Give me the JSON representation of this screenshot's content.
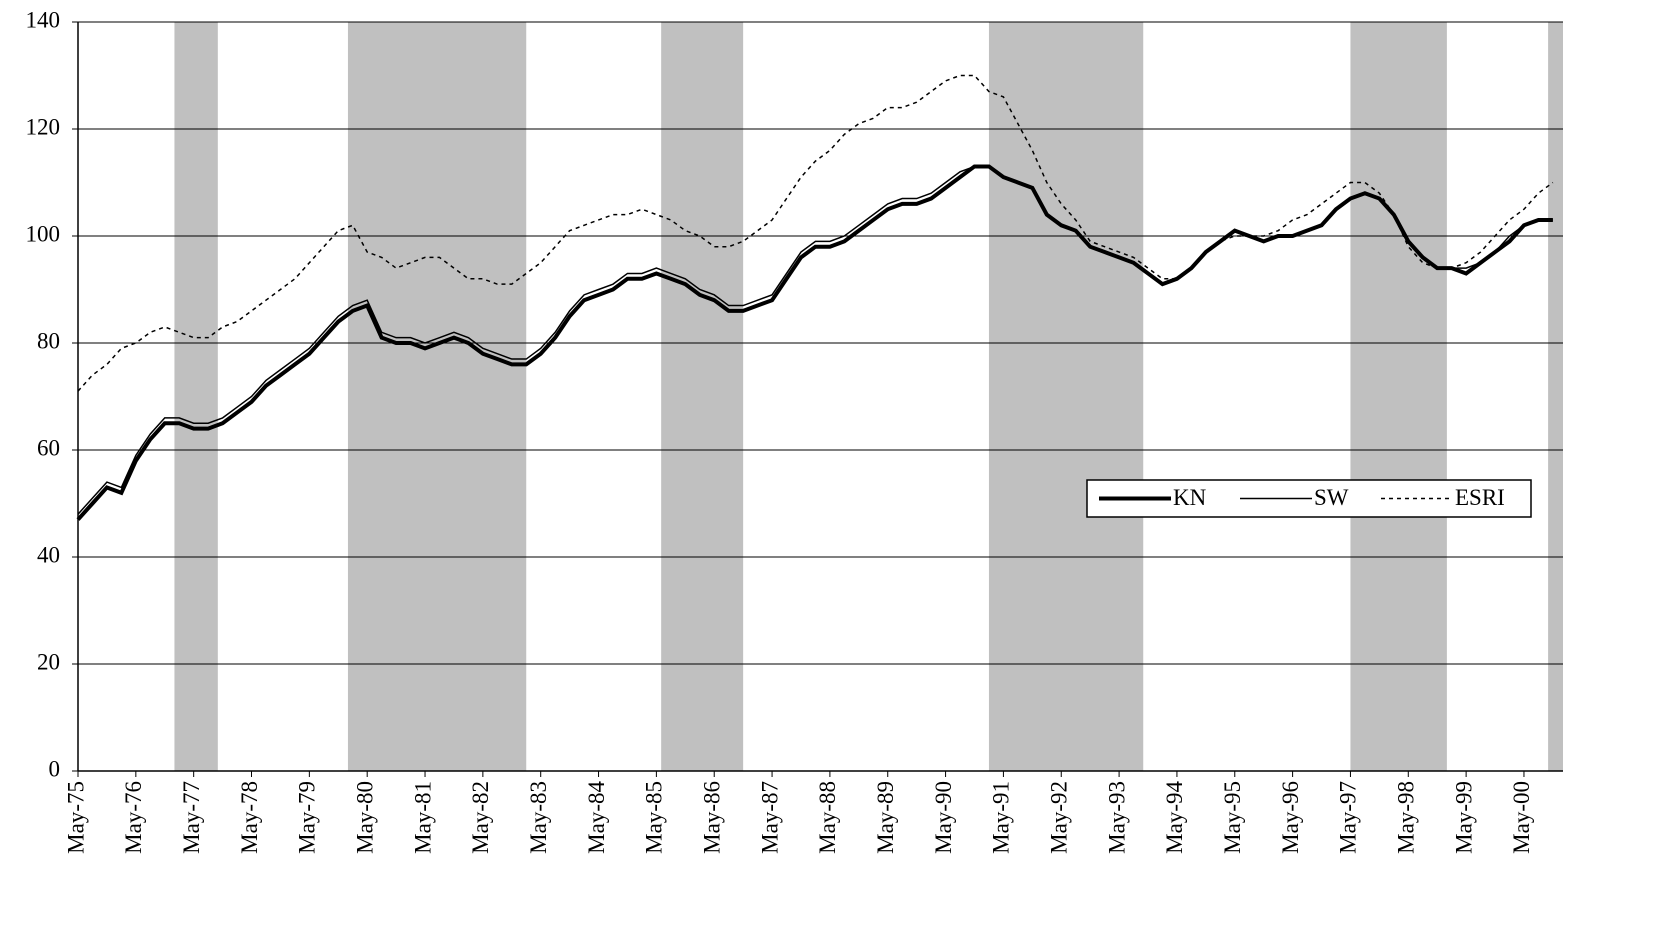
{
  "chart_data": {
    "type": "line",
    "categories": [
      "May-75",
      null,
      null,
      null,
      "May-76",
      null,
      null,
      null,
      "May-77",
      null,
      null,
      null,
      "May-78",
      null,
      null,
      null,
      "May-79",
      null,
      null,
      null,
      "May-80",
      null,
      null,
      null,
      "May-81",
      null,
      null,
      null,
      "May-82",
      null,
      null,
      null,
      "May-83",
      null,
      null,
      null,
      "May-84",
      null,
      null,
      null,
      "May-85",
      null,
      null,
      null,
      "May-86",
      null,
      null,
      null,
      "May-87",
      null,
      null,
      null,
      "May-88",
      null,
      null,
      null,
      "May-89",
      null,
      null,
      null,
      "May-90",
      null,
      null,
      null,
      "May-91",
      null,
      null,
      null,
      "May-92",
      null,
      null,
      null,
      "May-93",
      null,
      null,
      null,
      "May-94",
      null,
      null,
      null,
      "May-95",
      null,
      null,
      null,
      "May-96",
      null,
      null,
      null,
      "May-97",
      null,
      null,
      null,
      "May-98",
      null,
      null,
      null,
      "May-99",
      null,
      null,
      null,
      "May-00",
      null,
      null
    ],
    "xlim": [
      0,
      102.7
    ],
    "series": [
      {
        "name": "KN",
        "color": "#000000",
        "width": 4,
        "dash": "none",
        "values": [
          47,
          50,
          53,
          52,
          58,
          62,
          65,
          65,
          64,
          64,
          65,
          67,
          69,
          72,
          74,
          76,
          78,
          81,
          84,
          86,
          87,
          81,
          80,
          80,
          79,
          80,
          81,
          80,
          78,
          77,
          76,
          76,
          78,
          81,
          85,
          88,
          89,
          90,
          92,
          92,
          93,
          92,
          91,
          89,
          88,
          86,
          86,
          87,
          88,
          92,
          96,
          98,
          98,
          99,
          101,
          103,
          105,
          106,
          106,
          107,
          109,
          111,
          113,
          113,
          111,
          110,
          109,
          104,
          102,
          101,
          98,
          97,
          96,
          95,
          93,
          91,
          92,
          94,
          97,
          99,
          101,
          100,
          99,
          100,
          100,
          101,
          102,
          105,
          107,
          108,
          107,
          104,
          99,
          96,
          94,
          94,
          93,
          95,
          97,
          99,
          102,
          103,
          103
        ]
      },
      {
        "name": "SW",
        "color": "#000000",
        "width": 1.5,
        "dash": "none",
        "values": [
          48,
          51,
          54,
          53,
          59,
          63,
          66,
          66,
          65,
          65,
          66,
          68,
          70,
          73,
          75,
          77,
          79,
          82,
          85,
          87,
          88,
          82,
          81,
          81,
          80,
          81,
          82,
          81,
          79,
          78,
          77,
          77,
          79,
          82,
          86,
          89,
          90,
          91,
          93,
          93,
          94,
          93,
          92,
          90,
          89,
          87,
          87,
          88,
          89,
          93,
          97,
          99,
          99,
          100,
          102,
          104,
          106,
          107,
          107,
          108,
          110,
          112,
          113,
          113,
          111,
          110,
          109,
          104,
          102,
          101,
          98,
          97,
          96,
          95,
          93,
          91,
          92,
          94,
          97,
          99,
          101,
          100,
          99,
          100,
          100,
          101,
          102,
          105,
          107,
          108,
          107,
          104,
          99,
          96,
          94,
          94,
          94,
          95,
          97,
          100,
          102,
          103,
          103
        ]
      },
      {
        "name": "ESRI",
        "color": "#000000",
        "width": 1.5,
        "dash": "4 4",
        "values": [
          71,
          74,
          76,
          79,
          80,
          82,
          83,
          82,
          81,
          81,
          83,
          84,
          86,
          88,
          90,
          92,
          95,
          98,
          101,
          102,
          97,
          96,
          94,
          95,
          96,
          96,
          94,
          92,
          92,
          91,
          91,
          93,
          95,
          98,
          101,
          102,
          103,
          104,
          104,
          105,
          104,
          103,
          101,
          100,
          98,
          98,
          99,
          101,
          103,
          107,
          111,
          114,
          116,
          119,
          121,
          122,
          124,
          124,
          125,
          127,
          129,
          130,
          130,
          127,
          126,
          121,
          116,
          110,
          106,
          103,
          99,
          98,
          97,
          96,
          94,
          92,
          92,
          94,
          97,
          99,
          100,
          100,
          100,
          101,
          103,
          104,
          106,
          108,
          110,
          110,
          108,
          104,
          98,
          95,
          94,
          94,
          95,
          97,
          100,
          103,
          105,
          108,
          110
        ]
      }
    ],
    "shaded_ranges": [
      [
        6.67,
        9.67
      ],
      [
        18.67,
        31
      ],
      [
        40.33,
        46
      ],
      [
        63,
        73.67
      ],
      [
        88,
        94.67
      ],
      [
        101.67,
        102.7
      ]
    ],
    "shade_color": "#c0c0c0",
    "ylim": [
      0,
      140
    ],
    "yticks": [
      0,
      20,
      40,
      60,
      80,
      100,
      120,
      140
    ],
    "grid": true,
    "legend": "center-right"
  }
}
